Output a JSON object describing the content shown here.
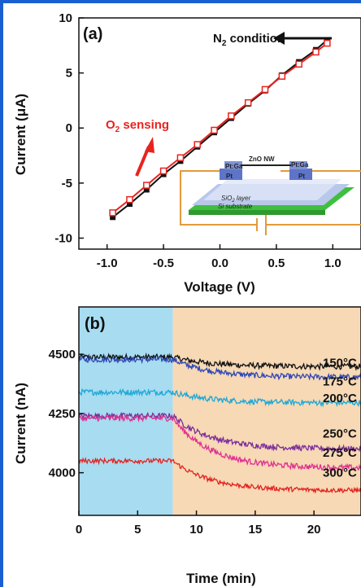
{
  "chart_data": [
    {
      "type": "line",
      "panel_label": "(a)",
      "xlabel": "Voltage (V)",
      "ylabel": "Current (μA)",
      "xlim": [
        -1.25,
        1.25
      ],
      "ylim": [
        -11,
        10
      ],
      "xticks": [
        "-1.0",
        "-0.5",
        "0.0",
        "0.5",
        "1.0"
      ],
      "yticks": [
        "-10",
        "-5",
        "0",
        "5",
        "10"
      ],
      "series": [
        {
          "name": "N2 condition",
          "color": "#111111",
          "marker": "square-filled",
          "x": [
            -0.95,
            -0.8,
            -0.65,
            -0.5,
            -0.35,
            -0.2,
            -0.05,
            0.1,
            0.25,
            0.4,
            0.55,
            0.7,
            0.85,
            0.95
          ],
          "y": [
            -8.1,
            -6.9,
            -5.6,
            -4.2,
            -3.0,
            -1.7,
            -0.4,
            0.9,
            2.2,
            3.4,
            4.8,
            6.0,
            7.1,
            8.0
          ]
        },
        {
          "name": "O2 sensing",
          "color": "#e8231f",
          "marker": "square-open",
          "x": [
            -0.95,
            -0.8,
            -0.65,
            -0.5,
            -0.35,
            -0.2,
            -0.05,
            0.1,
            0.25,
            0.4,
            0.55,
            0.7,
            0.85,
            0.95
          ],
          "y": [
            -7.7,
            -6.5,
            -5.2,
            -3.9,
            -2.7,
            -1.5,
            -0.2,
            1.1,
            2.3,
            3.5,
            4.7,
            5.8,
            6.9,
            7.7
          ]
        }
      ],
      "annotations": {
        "n2_label_pre": "N",
        "n2_label_sub": "2",
        "n2_label_post": " condition",
        "o2_label_pre": "O",
        "o2_label_sub": "2",
        "o2_label_post": " sensing"
      },
      "inset": {
        "nw_label": "ZnO NW",
        "ptga_left": "Pt:Ga",
        "ptga_right": "Pt:Ga",
        "pt_left": "Pt",
        "pt_right": "Pt",
        "sio2_pre": "SiO",
        "sio2_sub": "2",
        "sio2_post": " layer",
        "substrate": "Si substrate"
      }
    },
    {
      "type": "line",
      "panel_label": "(b)",
      "xlabel": "Time (min)",
      "ylabel": "Current (nA)",
      "xlim": [
        0,
        24
      ],
      "ylim": [
        3820,
        4700
      ],
      "xticks": [
        "0",
        "5",
        "10",
        "15",
        "20"
      ],
      "yticks": [
        "4000",
        "4250",
        "4500"
      ],
      "shaded_regions": [
        {
          "x": [
            0,
            8
          ],
          "color": "#a8dcf0"
        },
        {
          "x": [
            8,
            24
          ],
          "color": "#f7d9b6"
        }
      ],
      "series": [
        {
          "name": "150°C",
          "color": "#111111",
          "base": 4488,
          "drop": 40,
          "noise": 12
        },
        {
          "name": "175°C",
          "color": "#2f48b4",
          "base": 4478,
          "drop": 75,
          "noise": 12
        },
        {
          "name": "200°C",
          "color": "#1fa8d6",
          "base": 4340,
          "drop": 45,
          "noise": 12
        },
        {
          "name": "250°C",
          "color": "#7b2d9b",
          "base": 4240,
          "drop": 140,
          "noise": 12
        },
        {
          "name": "275°C",
          "color": "#e0308f",
          "base": 4230,
          "drop": 210,
          "noise": 12
        },
        {
          "name": "300°C",
          "color": "#e3231f",
          "base": 4050,
          "drop": 125,
          "noise": 10
        }
      ],
      "temp_labels": [
        "150°C",
        "175°C",
        "200°C",
        "250°C",
        "275°C",
        "300°C"
      ]
    }
  ]
}
